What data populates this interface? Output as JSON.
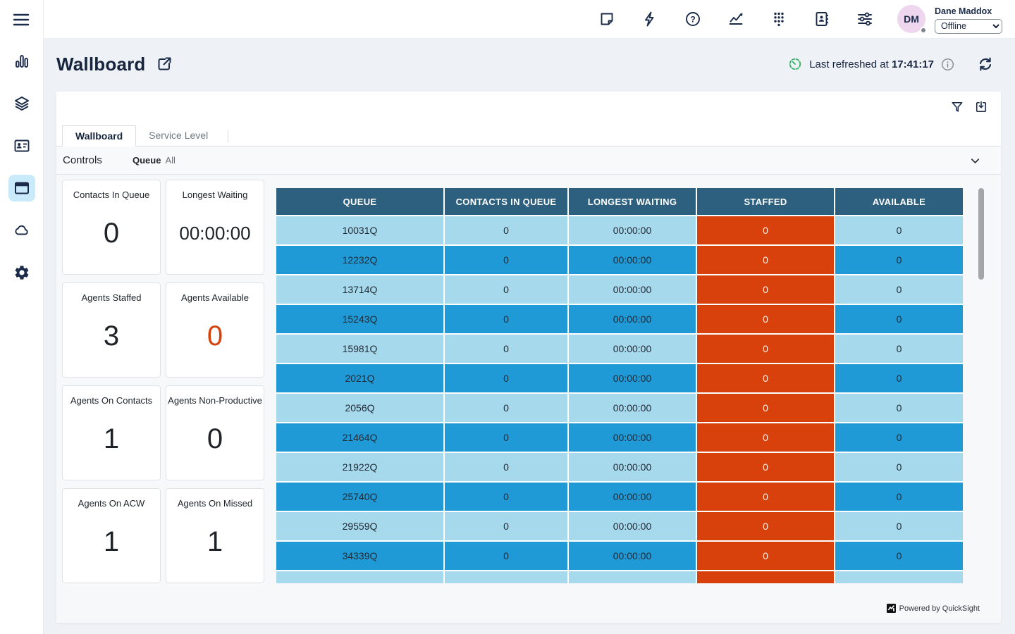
{
  "colors": {
    "navy": "#1b2b4a",
    "header_teal": "#2d5f7e",
    "row_light_blue": "#a6d9ec",
    "row_medium_blue": "#1f9ad7",
    "staffed_orange": "#d9410c",
    "kpi_alert_orange": "#d9410c",
    "refresh_green": "#33b062",
    "avatar_pink": "#eed7ee",
    "active_nav_bg": "#c9eafb"
  },
  "sidebar": {
    "icons": [
      "menu-icon",
      "analytics-icon",
      "queues-icon",
      "contact-card-icon",
      "wallboard-icon",
      "cloud-icon",
      "settings-icon"
    ],
    "active": "wallboard-icon"
  },
  "topbar": {
    "icons": [
      "notes-icon",
      "quick-actions-icon",
      "help-icon",
      "metrics-icon",
      "dialpad-icon",
      "directory-icon",
      "preferences-icon"
    ],
    "user": {
      "initials": "DM",
      "name": "Dane Maddox",
      "status": "Offline"
    }
  },
  "page": {
    "title": "Wallboard",
    "last_refreshed_prefix": "Last refreshed at",
    "last_refreshed_time": "17:41:17"
  },
  "card": {
    "toolbar_icons": [
      "filter-icon",
      "export-icon"
    ],
    "tabs": [
      {
        "label": "Wallboard",
        "active": true
      },
      {
        "label": "Service Level",
        "active": false
      }
    ],
    "controls": {
      "label": "Controls",
      "filter_name": "Queue",
      "filter_value": "All"
    }
  },
  "kpis": [
    {
      "title": "Contacts In Queue",
      "value": "0",
      "accent": "dark"
    },
    {
      "title": "Longest Waiting",
      "value": "00:00:00",
      "accent": "dark"
    },
    {
      "title": "Agents Staffed",
      "value": "3",
      "accent": "dark"
    },
    {
      "title": "Agents Available",
      "value": "0",
      "accent": "orange"
    },
    {
      "title": "Agents On Contacts",
      "value": "1",
      "accent": "dark"
    },
    {
      "title": "Agents Non-Productive",
      "value": "0",
      "accent": "dark"
    },
    {
      "title": "Agents On ACW",
      "value": "1",
      "accent": "dark"
    },
    {
      "title": "Agents On Missed",
      "value": "1",
      "accent": "dark"
    }
  ],
  "table": {
    "columns": [
      "QUEUE",
      "CONTACTS IN QUEUE",
      "LONGEST WAITING",
      "STAFFED",
      "AVAILABLE"
    ],
    "rows": [
      [
        "10031Q",
        "0",
        "00:00:00",
        "0",
        "0"
      ],
      [
        "12232Q",
        "0",
        "00:00:00",
        "0",
        "0"
      ],
      [
        "13714Q",
        "0",
        "00:00:00",
        "0",
        "0"
      ],
      [
        "15243Q",
        "0",
        "00:00:00",
        "0",
        "0"
      ],
      [
        "15981Q",
        "0",
        "00:00:00",
        "0",
        "0"
      ],
      [
        "2021Q",
        "0",
        "00:00:00",
        "0",
        "0"
      ],
      [
        "2056Q",
        "0",
        "00:00:00",
        "0",
        "0"
      ],
      [
        "21464Q",
        "0",
        "00:00:00",
        "0",
        "0"
      ],
      [
        "21922Q",
        "0",
        "00:00:00",
        "0",
        "0"
      ],
      [
        "25740Q",
        "0",
        "00:00:00",
        "0",
        "0"
      ],
      [
        "29559Q",
        "0",
        "00:00:00",
        "0",
        "0"
      ],
      [
        "34339Q",
        "0",
        "00:00:00",
        "0",
        "0"
      ]
    ],
    "has_partial_last_row": true
  },
  "footer": {
    "powered_by": "Powered by QuickSight"
  }
}
